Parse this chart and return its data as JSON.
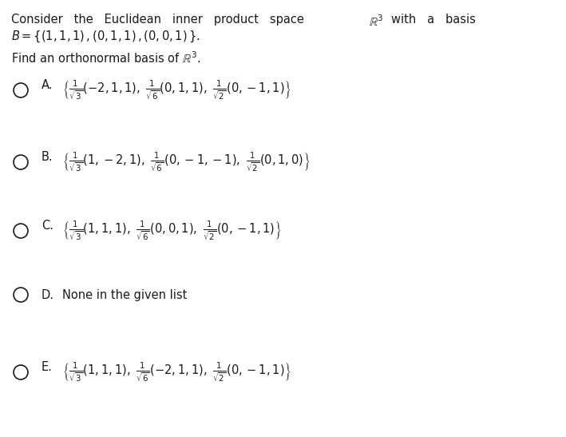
{
  "bg_color": "#ffffff",
  "figsize": [
    7.09,
    5.47
  ],
  "dpi": 100,
  "text_color": "#1a1a1a",
  "font_size_header": 10.5,
  "font_size_body": 10.5,
  "font_size_option_label": 10.5,
  "font_size_formula": 10.5,
  "options": [
    {
      "label": "A.",
      "formula": "$\\left\\{\\frac{1}{\\sqrt{3}}(-2,1,1),\\ \\frac{1}{\\sqrt{6}}(0,1,1),\\ \\frac{1}{\\sqrt{2}}(0,-1,1)\\right\\}$"
    },
    {
      "label": "B.",
      "formula": "$\\left\\{\\frac{1}{\\sqrt{3}}(1,-2,1),\\ \\frac{1}{\\sqrt{6}}(0,-1,-1),\\ \\frac{1}{\\sqrt{2}}(0,1,0)\\right\\}$"
    },
    {
      "label": "C.",
      "formula": "$\\left\\{\\frac{1}{\\sqrt{3}}(1,1,1),\\ \\frac{1}{\\sqrt{6}}(0,0,1),\\ \\frac{1}{\\sqrt{2}}(0,-1,1)\\right\\}$"
    },
    {
      "label": "D.",
      "formula": "None in the given list"
    },
    {
      "label": "E.",
      "formula": "$\\left\\{\\frac{1}{\\sqrt{3}}(1,1,1),\\ \\frac{1}{\\sqrt{6}}(-2,1,1),\\ \\frac{1}{\\sqrt{2}}(0,-1,1)\\right\\}$"
    }
  ]
}
